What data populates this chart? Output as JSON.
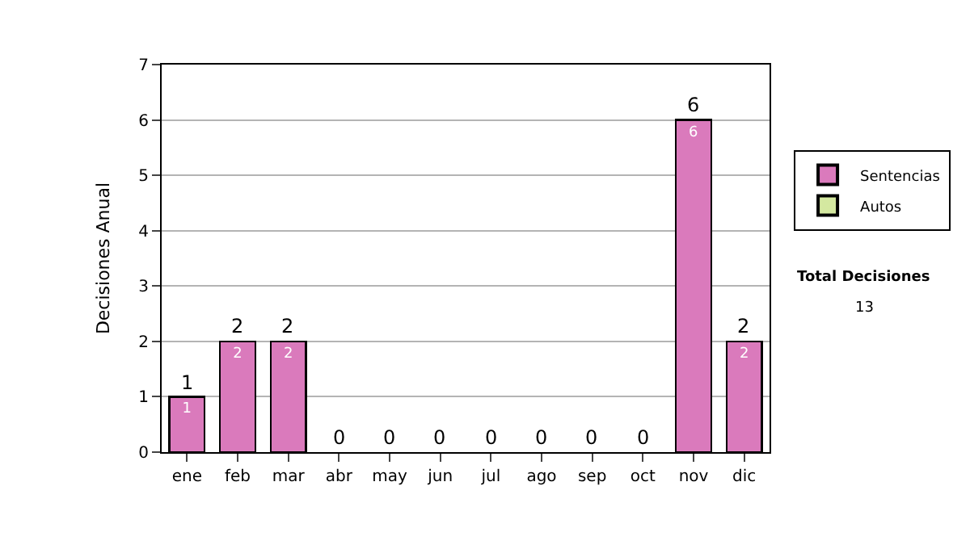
{
  "chart_data": {
    "type": "bar",
    "stacked": true,
    "ylabel": "Decisiones Anual",
    "categories": [
      "ene",
      "feb",
      "mar",
      "abr",
      "may",
      "jun",
      "jul",
      "ago",
      "sep",
      "oct",
      "nov",
      "dic"
    ],
    "series": [
      {
        "name": "Sentencias",
        "color": "#da7abc",
        "values": [
          1,
          2,
          2,
          0,
          0,
          0,
          0,
          0,
          0,
          0,
          6,
          2
        ],
        "value_labels": [
          "1",
          "2",
          "2",
          null,
          null,
          null,
          null,
          null,
          null,
          null,
          "6",
          "2"
        ]
      },
      {
        "name": "Autos",
        "color": "#d4e8a0",
        "values": [
          0,
          0,
          0,
          0,
          0,
          0,
          0,
          0,
          0,
          0,
          0,
          0
        ]
      }
    ],
    "totals": [
      "1",
      "2",
      "2",
      "0",
      "0",
      "0",
      "0",
      "0",
      "0",
      "0",
      "6",
      "2"
    ],
    "ylim": [
      0,
      7
    ],
    "yticks": [
      0,
      1,
      2,
      3,
      4,
      5,
      6,
      7
    ],
    "grid": "y",
    "legend": "right",
    "annotations": [
      "Total Decisiones",
      "13"
    ]
  }
}
